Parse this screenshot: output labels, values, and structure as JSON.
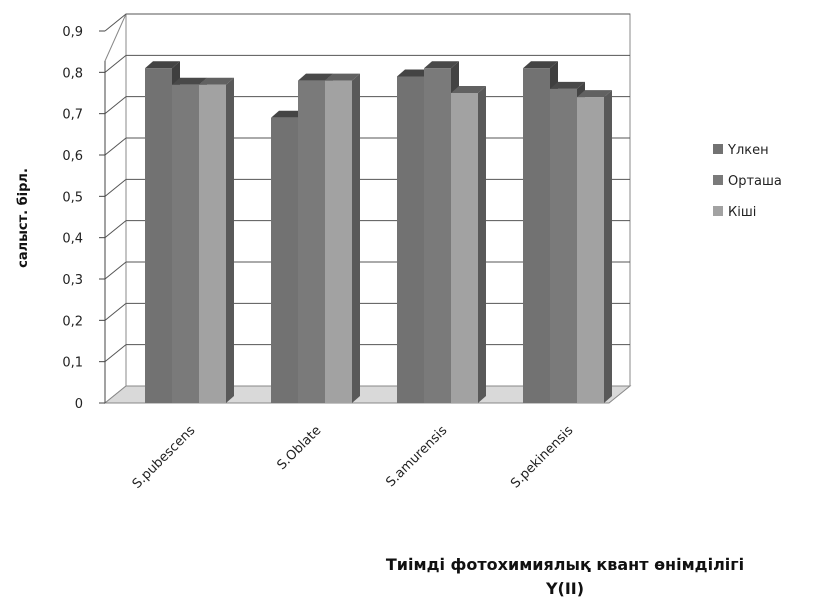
{
  "chart_data": {
    "type": "bar",
    "three_d": true,
    "categories": [
      "S.pubescens",
      "S.Oblate",
      "S.amurensis",
      "S.pekinensis"
    ],
    "series": [
      {
        "name": "Үлкен",
        "values": [
          0.81,
          0.69,
          0.79,
          0.81
        ],
        "color": "#727272"
      },
      {
        "name": "Орташа",
        "values": [
          0.77,
          0.78,
          0.81,
          0.76
        ],
        "color": "#7a7a7a"
      },
      {
        "name": "Кіші",
        "values": [
          0.77,
          0.78,
          0.75,
          0.74
        ],
        "color": "#a2a2a2"
      }
    ],
    "y_ticks": [
      "0",
      "0,1",
      "0,2",
      "0,3",
      "0,4",
      "0,5",
      "0,6",
      "0,7",
      "0,8",
      "0,9"
    ],
    "ylim": [
      0,
      0.9
    ],
    "ylabel": "салыст. бірл.",
    "xlabel_line1": "Тиімді фотохимиялық квант өнімділігі",
    "xlabel_line2": "Y(II)",
    "grid": true,
    "legend_position": "right"
  }
}
